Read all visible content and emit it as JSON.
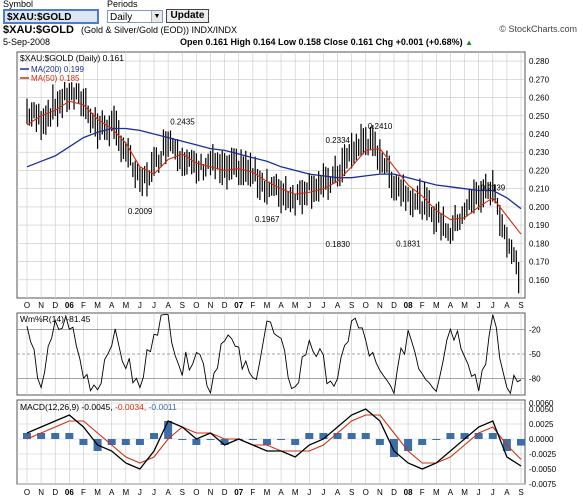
{
  "controls": {
    "symbol_label": "Symbol",
    "periods_label": "Periods",
    "symbol_value": "$XAU:$GOLD",
    "period_value": "Daily",
    "update_label": "Update"
  },
  "header": {
    "symbol_title": "$XAU:$GOLD",
    "description": "(Gold & Silver/Gold (EOD))  INDX/INDX",
    "date": "5-Sep-2008",
    "ohlc": "Open 0.161  High 0.164  Low 0.158  Close 0.161  Chg +0.001 (+0.68%)",
    "chg_arrow": "▲",
    "watermark": "© StockCharts.com"
  },
  "legend": {
    "price": "$XAU:$GOLD (Daily) 0.161",
    "ma200": "MA(200) 0.199",
    "ma50": "MA(50) 0.185",
    "wpr": "Wm%R(14) -81.45",
    "macd_name": "MACD(12,26,9)",
    "macd_v1": "-0.0045,",
    "macd_v2": "-0.0034,",
    "macd_v3": "-0.0011"
  },
  "colors": {
    "ma200": "#1a2f9a",
    "ma50": "#d03010",
    "price": "#000000",
    "hist": "#3c6ea8",
    "signal": "#d03010",
    "grid": "#c8c8c8",
    "wpr_fill": "#3a6a28"
  },
  "x_axis_labels": [
    "O",
    "N",
    "D",
    "06",
    "F",
    "M",
    "A",
    "M",
    "J",
    "J",
    "A",
    "S",
    "O",
    "N",
    "D",
    "07",
    "F",
    "M",
    "A",
    "M",
    "J",
    "J",
    "A",
    "S",
    "O",
    "N",
    "D",
    "08",
    "F",
    "M",
    "A",
    "M",
    "J",
    "J",
    "A",
    "S"
  ],
  "chart_data": [
    {
      "type": "line",
      "title": "$XAU:$GOLD (Daily)",
      "x": [
        "2005-10",
        "2005-11",
        "2005-12",
        "2006-01",
        "2006-02",
        "2006-03",
        "2006-04",
        "2006-05",
        "2006-06",
        "2006-07",
        "2006-08",
        "2006-09",
        "2006-10",
        "2006-11",
        "2006-12",
        "2007-01",
        "2007-02",
        "2007-03",
        "2007-04",
        "2007-05",
        "2007-06",
        "2007-07",
        "2007-08",
        "2007-09",
        "2007-10",
        "2007-11",
        "2007-12",
        "2008-01",
        "2008-02",
        "2008-03",
        "2008-04",
        "2008-05",
        "2008-06",
        "2008-07",
        "2008-08",
        "2008-09"
      ],
      "series": [
        {
          "name": "$XAU:$GOLD",
          "values": [
            0.252,
            0.248,
            0.255,
            0.262,
            0.258,
            0.243,
            0.245,
            0.231,
            0.212,
            0.222,
            0.238,
            0.228,
            0.22,
            0.225,
            0.219,
            0.222,
            0.218,
            0.211,
            0.208,
            0.205,
            0.212,
            0.211,
            0.218,
            0.23,
            0.237,
            0.229,
            0.213,
            0.207,
            0.202,
            0.195,
            0.186,
            0.199,
            0.207,
            0.21,
            0.182,
            0.161
          ]
        },
        {
          "name": "MA(200)",
          "values": [
            0.222,
            0.225,
            0.228,
            0.233,
            0.238,
            0.241,
            0.243,
            0.243,
            0.242,
            0.24,
            0.238,
            0.236,
            0.234,
            0.232,
            0.231,
            0.229,
            0.227,
            0.225,
            0.222,
            0.22,
            0.218,
            0.217,
            0.216,
            0.216,
            0.217,
            0.218,
            0.218,
            0.216,
            0.214,
            0.212,
            0.211,
            0.21,
            0.209,
            0.209,
            0.205,
            0.199
          ]
        },
        {
          "name": "MA(50)",
          "values": [
            0.245,
            0.25,
            0.253,
            0.258,
            0.256,
            0.248,
            0.243,
            0.235,
            0.222,
            0.218,
            0.226,
            0.229,
            0.224,
            0.222,
            0.22,
            0.221,
            0.219,
            0.214,
            0.21,
            0.207,
            0.208,
            0.21,
            0.214,
            0.222,
            0.231,
            0.232,
            0.222,
            0.212,
            0.206,
            0.198,
            0.193,
            0.194,
            0.2,
            0.205,
            0.195,
            0.185
          ]
        }
      ],
      "annotations": [
        {
          "x": "2006-09",
          "y": 0.2435,
          "text": "0.2435"
        },
        {
          "x": "2006-06",
          "y": 0.2009,
          "text": "0.2009"
        },
        {
          "x": "2007-03",
          "y": 0.1967,
          "text": "0.1967"
        },
        {
          "x": "2007-08",
          "y": 0.2334,
          "text": "0.2334"
        },
        {
          "x": "2007-08",
          "y": 0.183,
          "text": "0.1830"
        },
        {
          "x": "2007-11",
          "y": 0.241,
          "text": "0.2410"
        },
        {
          "x": "2008-01",
          "y": 0.1831,
          "text": "0.1831"
        },
        {
          "x": "2008-07",
          "y": 0.2139,
          "text": "0.2139"
        }
      ],
      "ylim": [
        0.15,
        0.285
      ],
      "yticks": [
        "0.280",
        "0.270",
        "0.260",
        "0.250",
        "0.240",
        "0.230",
        "0.220",
        "0.210",
        "0.200",
        "0.190",
        "0.180",
        "0.170",
        "0.160"
      ],
      "grid": true
    },
    {
      "type": "line",
      "title": "Wm%R(14)",
      "x": [
        "2005-10",
        "2005-11",
        "2005-12",
        "2006-01",
        "2006-02",
        "2006-03",
        "2006-04",
        "2006-05",
        "2006-06",
        "2006-07",
        "2006-08",
        "2006-09",
        "2006-10",
        "2006-11",
        "2006-12",
        "2007-01",
        "2007-02",
        "2007-03",
        "2007-04",
        "2007-05",
        "2007-06",
        "2007-07",
        "2007-08",
        "2007-09",
        "2007-10",
        "2007-11",
        "2007-12",
        "2008-01",
        "2008-02",
        "2008-03",
        "2008-04",
        "2008-05",
        "2008-06",
        "2008-07",
        "2008-08",
        "2008-09"
      ],
      "series": [
        {
          "name": "Wm%R(14)",
          "values": [
            -30,
            -85,
            -20,
            -10,
            -75,
            -90,
            -25,
            -60,
            -95,
            -15,
            -5,
            -70,
            -40,
            -90,
            -20,
            -55,
            -85,
            -10,
            -45,
            -95,
            -30,
            -65,
            -90,
            -5,
            -35,
            -80,
            -95,
            -20,
            -70,
            -85,
            -15,
            -40,
            -90,
            -10,
            -95,
            -81.45
          ]
        }
      ],
      "ylim": [
        -100,
        0
      ],
      "yticks": [
        "-20",
        "-50",
        "-80"
      ],
      "grid": true
    },
    {
      "type": "line",
      "title": "MACD(12,26,9)",
      "x": [
        "2005-10",
        "2005-11",
        "2005-12",
        "2006-01",
        "2006-02",
        "2006-03",
        "2006-04",
        "2006-05",
        "2006-06",
        "2006-07",
        "2006-08",
        "2006-09",
        "2006-10",
        "2006-11",
        "2006-12",
        "2007-01",
        "2007-02",
        "2007-03",
        "2007-04",
        "2007-05",
        "2007-06",
        "2007-07",
        "2007-08",
        "2007-09",
        "2007-10",
        "2007-11",
        "2007-12",
        "2008-01",
        "2008-02",
        "2008-03",
        "2008-04",
        "2008-05",
        "2008-06",
        "2008-07",
        "2008-08",
        "2008-09"
      ],
      "series": [
        {
          "name": "MACD",
          "values": [
            0.001,
            0.002,
            0.003,
            0.004,
            0.002,
            -0.001,
            -0.002,
            -0.004,
            -0.005,
            -0.002,
            0.003,
            0.002,
            0.0,
            0.001,
            -0.001,
            0.0,
            -0.001,
            -0.002,
            -0.002,
            -0.003,
            -0.001,
            0.0,
            0.002,
            0.004,
            0.005,
            0.003,
            -0.002,
            -0.004,
            -0.005,
            -0.004,
            -0.002,
            0.0,
            0.002,
            0.003,
            -0.003,
            -0.0045
          ]
        },
        {
          "name": "Signal",
          "values": [
            0.0,
            0.001,
            0.002,
            0.003,
            0.003,
            0.001,
            -0.001,
            -0.003,
            -0.004,
            -0.003,
            0.0,
            0.002,
            0.001,
            0.001,
            0.0,
            0.0,
            -0.001,
            -0.001,
            -0.002,
            -0.002,
            -0.002,
            -0.001,
            0.001,
            0.003,
            0.004,
            0.004,
            0.001,
            -0.002,
            -0.004,
            -0.004,
            -0.003,
            -0.001,
            0.001,
            0.002,
            -0.001,
            -0.0034
          ]
        },
        {
          "name": "Histogram",
          "values": [
            0.001,
            0.001,
            0.001,
            0.001,
            -0.001,
            -0.002,
            -0.001,
            -0.001,
            -0.001,
            0.001,
            0.003,
            0.0,
            -0.001,
            0.0,
            -0.001,
            0.0,
            0.0,
            -0.001,
            0.0,
            -0.001,
            0.001,
            0.001,
            0.001,
            0.001,
            0.001,
            -0.001,
            -0.003,
            -0.002,
            -0.001,
            0.0,
            0.001,
            0.001,
            0.001,
            0.001,
            -0.002,
            -0.0011
          ]
        }
      ],
      "ylim": [
        -0.0075,
        0.0065
      ],
      "yticks": [
        "0.0060",
        "0.0050",
        "0.0025",
        "0.0000",
        "-0.0025",
        "-0.0050",
        "-0.0075"
      ],
      "grid": true
    }
  ]
}
